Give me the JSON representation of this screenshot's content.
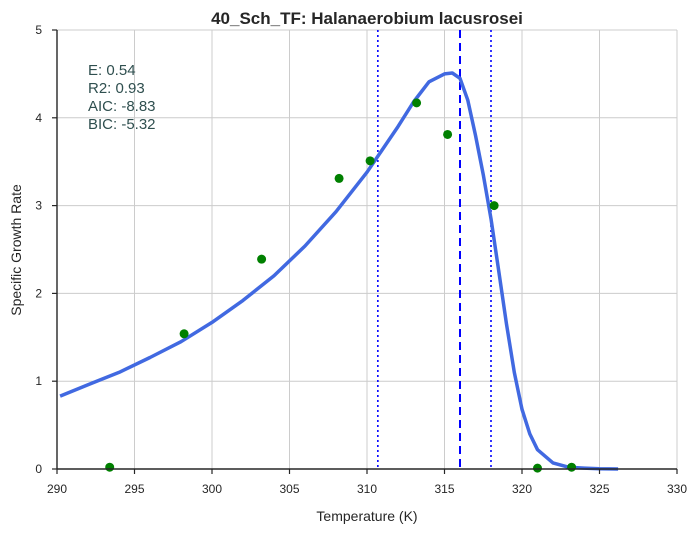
{
  "chart_data": {
    "type": "scatter",
    "title": "40_Sch_TF: Halanaerobium lacusrosei",
    "xlabel": "Temperature (K)",
    "ylabel": "Specific Growth Rate",
    "xlim": [
      290,
      330
    ],
    "ylim": [
      0,
      5
    ],
    "xticks": [
      "290",
      "295",
      "300",
      "305",
      "310",
      "315",
      "320",
      "325",
      "330"
    ],
    "yticks": [
      "0",
      "1",
      "2",
      "3",
      "4",
      "5"
    ],
    "grid": true,
    "stats": [
      "E:  0.54",
      "R2:  0.93",
      "AIC: -8.83",
      "BIC: -5.32"
    ],
    "series": [
      {
        "kind": "points",
        "color": "#008000",
        "x": [
          293.4,
          298.2,
          303.2,
          308.2,
          310.2,
          313.2,
          315.2,
          318.2,
          321.0,
          323.2
        ],
        "y": [
          0.02,
          1.54,
          2.39,
          3.31,
          3.51,
          4.17,
          3.81,
          3.0,
          0.01,
          0.02
        ]
      },
      {
        "kind": "fitted-curve",
        "color": "#4169e1",
        "x": [
          290.2,
          292,
          294,
          296,
          298,
          300,
          302,
          304,
          306,
          308,
          310,
          312,
          313,
          314,
          315,
          315.5,
          316,
          316.5,
          317,
          317.5,
          318,
          318.5,
          319,
          319.5,
          320,
          320.5,
          321,
          322,
          323,
          324,
          325,
          326.2
        ],
        "y": [
          0.83,
          0.96,
          1.1,
          1.27,
          1.45,
          1.67,
          1.92,
          2.2,
          2.54,
          2.93,
          3.38,
          3.9,
          4.18,
          4.41,
          4.5,
          4.51,
          4.45,
          4.2,
          3.8,
          3.35,
          2.85,
          2.25,
          1.65,
          1.1,
          0.68,
          0.4,
          0.22,
          0.07,
          0.02,
          0.01,
          0.003,
          0.0
        ]
      }
    ],
    "vlines": [
      {
        "x": 316.0,
        "style": "dashed",
        "color": "#0000ff"
      },
      {
        "x": 310.7,
        "style": "dotted",
        "color": "#0000ff"
      },
      {
        "x": 318.0,
        "style": "dotted",
        "color": "#0000ff"
      }
    ]
  }
}
